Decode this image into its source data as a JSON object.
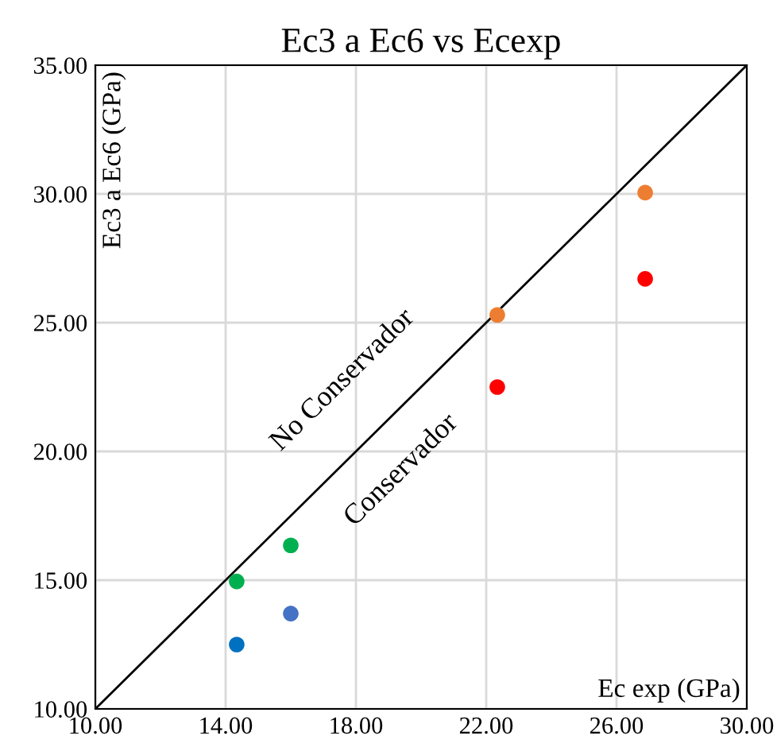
{
  "chart_data": {
    "type": "scatter",
    "title": "Ec3 a Ec6 vs Ecexp",
    "xlabel": "Ec exp (GPa)",
    "ylabel": "Ec3 a Ec6 (GPa)",
    "series": [
      {
        "color": "#0070c0",
        "x": [
          14.34
        ],
        "values": [
          12.5
        ]
      },
      {
        "color": "#4472c4",
        "x": [
          16.0
        ],
        "values": [
          13.7
        ]
      },
      {
        "color": "#00b050",
        "x": [
          14.34,
          16.0
        ],
        "values": [
          14.95,
          16.35
        ]
      },
      {
        "color": "#ed7d31",
        "x": [
          22.34,
          26.88
        ],
        "values": [
          25.3,
          30.05
        ]
      },
      {
        "color": "#ff0000",
        "x": [
          22.34,
          26.88
        ],
        "values": [
          22.5,
          26.7
        ]
      },
      {
        "type": "line",
        "marker": "none",
        "color": "#000000",
        "x": [
          10,
          30
        ],
        "values": [
          10,
          35
        ]
      }
    ],
    "annotations": [
      "No Conservador",
      "Conservador"
    ],
    "marker": "circle",
    "grid": true,
    "legend": false,
    "xlim": [
      10,
      30
    ],
    "ylim": [
      10,
      35
    ],
    "xticks": [
      {
        "value": 10,
        "label": "10.00"
      },
      {
        "value": 14,
        "label": "14.00"
      },
      {
        "value": 18,
        "label": "18.00"
      },
      {
        "value": 22,
        "label": "22.00"
      },
      {
        "value": 26,
        "label": "26.00"
      },
      {
        "value": 30,
        "label": "30.00"
      }
    ],
    "yticks": [
      {
        "value": 10,
        "label": "10.00"
      },
      {
        "value": 15,
        "label": "15.00"
      },
      {
        "value": 20,
        "label": "20.00"
      },
      {
        "value": 25,
        "label": "25.00"
      },
      {
        "value": 30,
        "label": "30.00"
      },
      {
        "value": 35,
        "label": "35.00"
      }
    ]
  }
}
